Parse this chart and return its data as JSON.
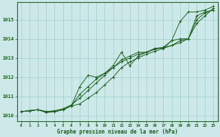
{
  "xlabel": "Graphe pression niveau de la mer (hPa)",
  "ylim": [
    1009.7,
    1015.9
  ],
  "xlim": [
    -0.5,
    23.5
  ],
  "yticks": [
    1010,
    1011,
    1012,
    1013,
    1014,
    1015
  ],
  "xticks": [
    0,
    1,
    2,
    3,
    4,
    5,
    6,
    7,
    8,
    9,
    10,
    11,
    12,
    13,
    14,
    15,
    16,
    17,
    18,
    19,
    20,
    21,
    22,
    23
  ],
  "bg_color": "#cce8e8",
  "grid_color": "#99cccc",
  "line_color": "#1a5c1a",
  "lines": [
    [
      1010.2,
      1010.25,
      1010.3,
      1010.2,
      1010.2,
      1010.3,
      1010.5,
      1010.6,
      1010.9,
      1011.2,
      1011.6,
      1012.0,
      1012.5,
      1012.8,
      1013.0,
      1013.2,
      1013.35,
      1013.5,
      1013.65,
      1013.8,
      1014.0,
      1014.8,
      1015.2,
      1015.6
    ],
    [
      1010.2,
      1010.25,
      1010.3,
      1010.2,
      1010.2,
      1010.3,
      1010.5,
      1011.1,
      1011.5,
      1011.9,
      1012.2,
      1012.5,
      1012.8,
      1013.0,
      1013.2,
      1013.3,
      1013.45,
      1013.55,
      1013.65,
      1013.9,
      1014.0,
      1015.0,
      1015.35,
      1015.5
    ],
    [
      1010.2,
      1010.25,
      1010.3,
      1010.2,
      1010.25,
      1010.35,
      1010.55,
      1010.9,
      1011.3,
      1011.7,
      1012.1,
      1012.5,
      1012.9,
      1013.1,
      1013.3,
      1013.3,
      1013.5,
      1013.55,
      1013.9,
      1014.9,
      1015.4,
      1015.4,
      1015.5,
      1015.7
    ],
    [
      1010.2,
      1010.25,
      1010.3,
      1010.15,
      1010.2,
      1010.3,
      1010.5,
      1011.5,
      1012.1,
      1012.0,
      1012.2,
      1012.6,
      1013.3,
      1012.6,
      1013.1,
      1013.3,
      1013.5,
      1013.5,
      1013.9,
      1014.0,
      1014.0,
      1015.2,
      1015.4,
      1015.5
    ]
  ]
}
